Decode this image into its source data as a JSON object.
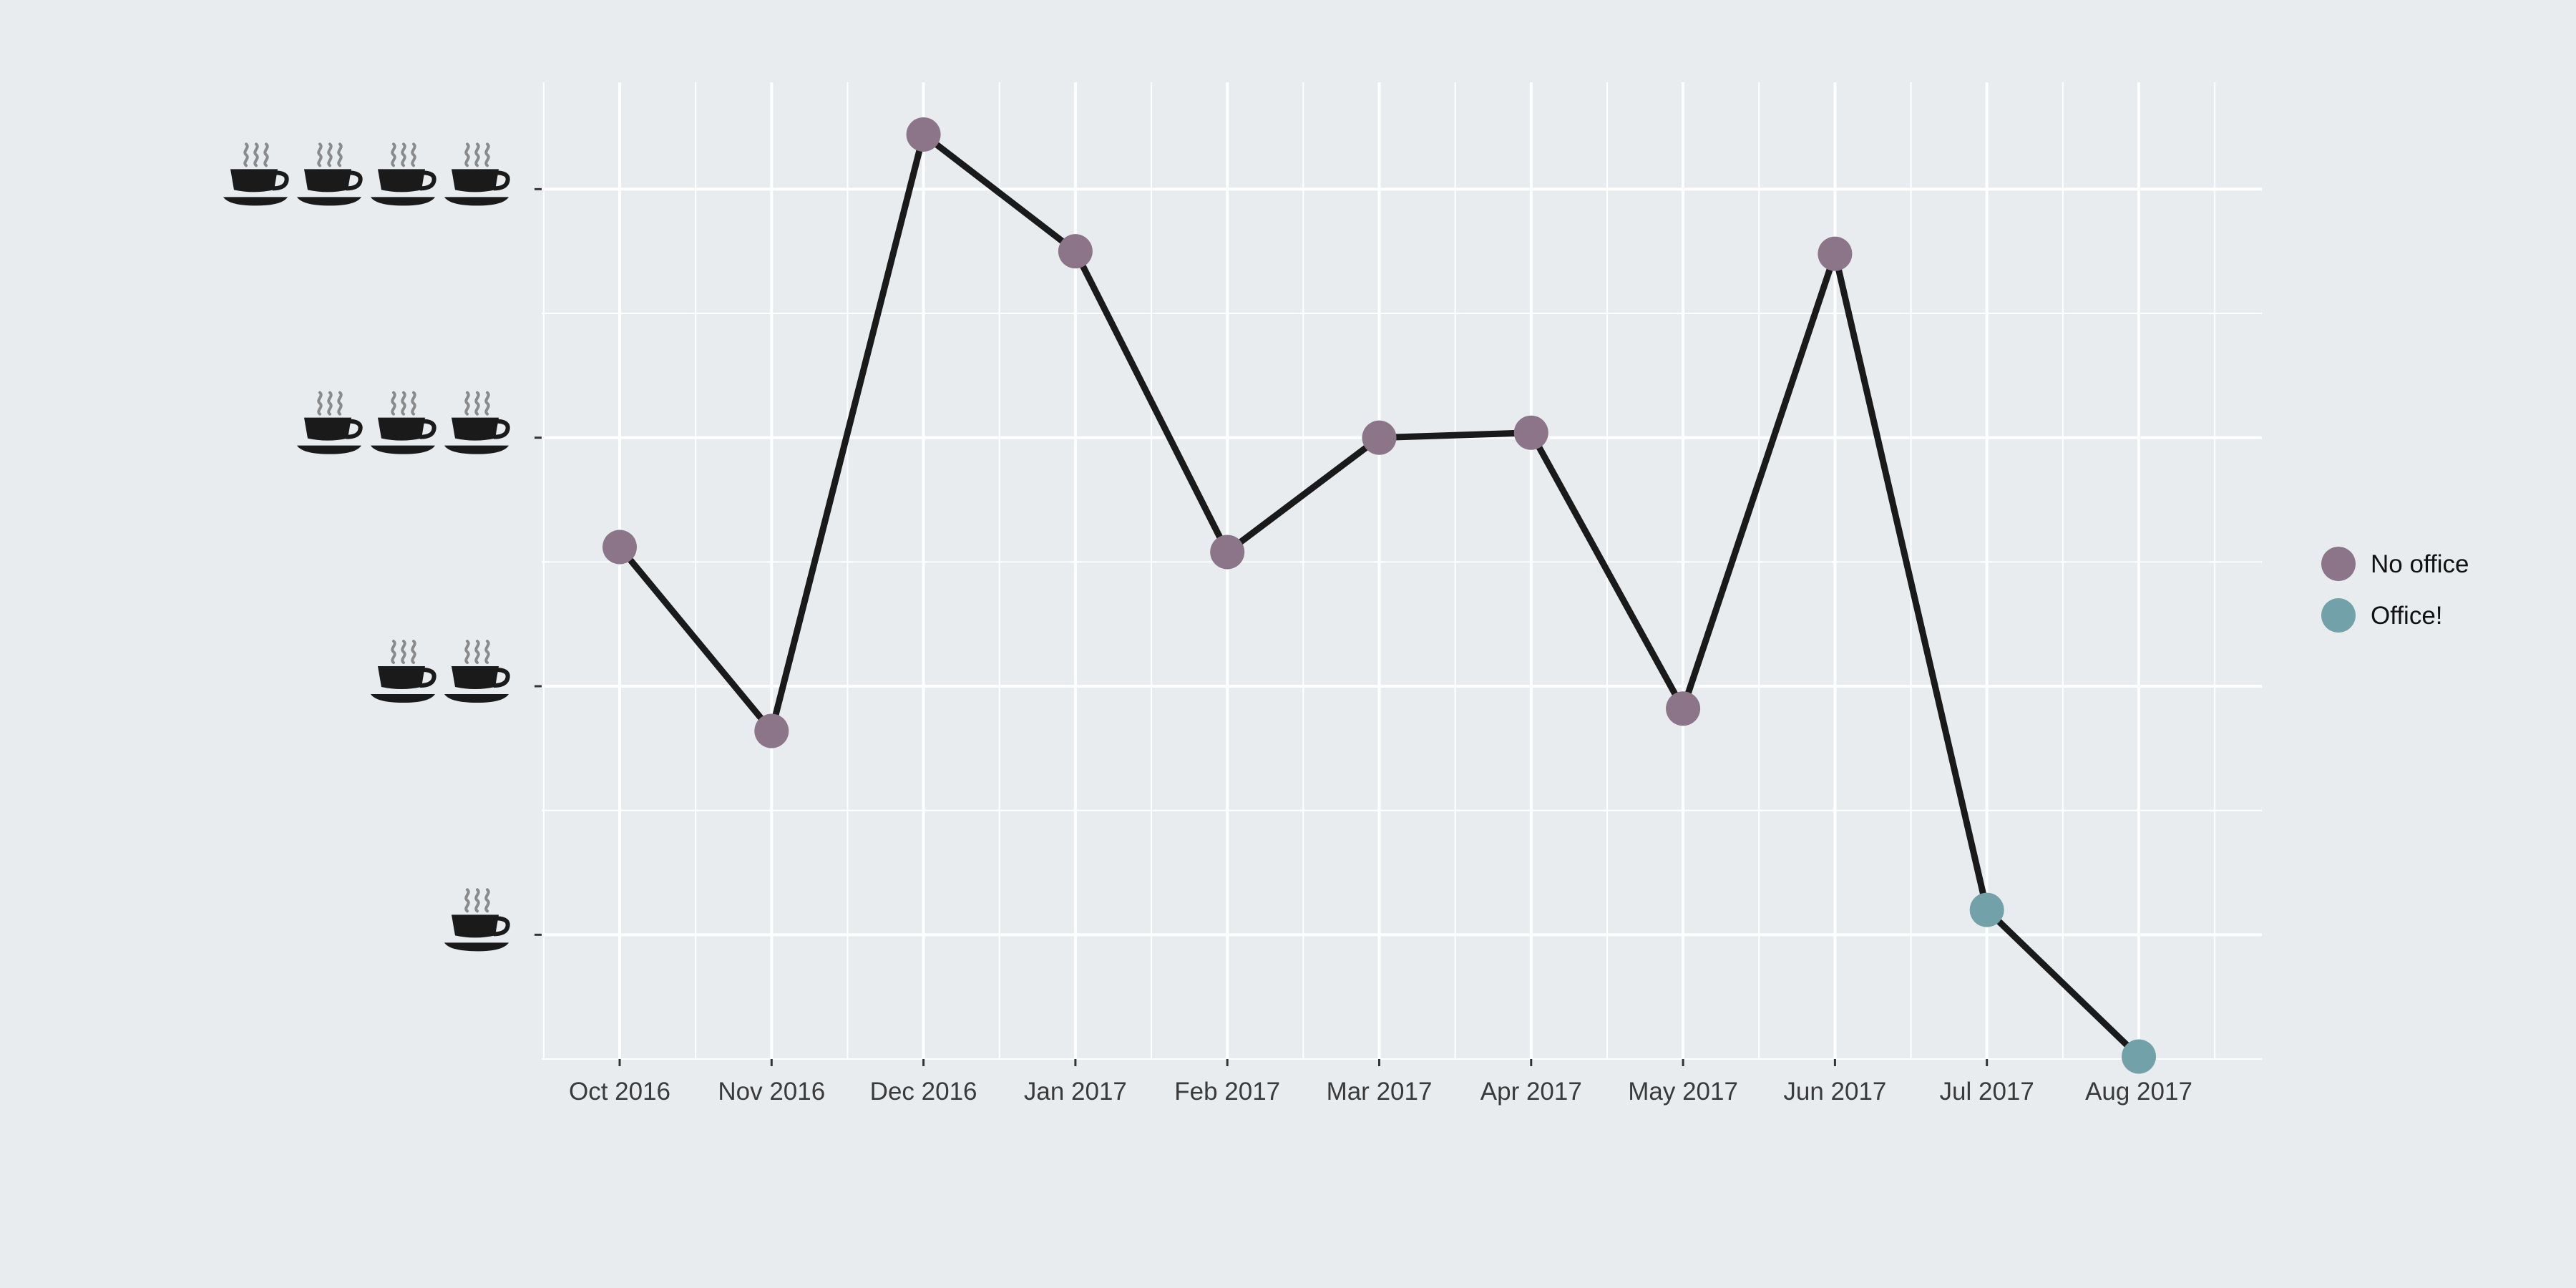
{
  "chart_data": {
    "type": "line",
    "title": "",
    "xlabel": "",
    "ylabel": "",
    "categories": [
      "Oct 2016",
      "Nov 2016",
      "Dec 2016",
      "Jan 2017",
      "Feb 2017",
      "Mar 2017",
      "Apr 2017",
      "May 2017",
      "Jun 2017",
      "Jul 2017",
      "Aug 2017"
    ],
    "values": [
      2.56,
      1.82,
      4.22,
      3.75,
      2.54,
      3.0,
      3.02,
      1.91,
      3.74,
      1.1,
      0.51
    ],
    "group": [
      "No office",
      "No office",
      "No office",
      "No office",
      "No office",
      "No office",
      "No office",
      "No office",
      "No office",
      "Office!",
      "Office!"
    ],
    "ylim": [
      0.5,
      4.43
    ],
    "yticks": [
      {
        "value": 1,
        "icon": "coffee-cup-icon",
        "count": 1
      },
      {
        "value": 2,
        "icon": "coffee-cup-icon",
        "count": 2
      },
      {
        "value": 3,
        "icon": "coffee-cup-icon",
        "count": 3
      },
      {
        "value": 4,
        "icon": "coffee-cup-icon",
        "count": 4
      }
    ],
    "grid": true,
    "legend": {
      "placement": "right",
      "entries": [
        {
          "label": "No office",
          "color": "#8c7589"
        },
        {
          "label": "Office!",
          "color": "#72a1a9"
        }
      ]
    },
    "line_color": "#1a1a1a"
  }
}
